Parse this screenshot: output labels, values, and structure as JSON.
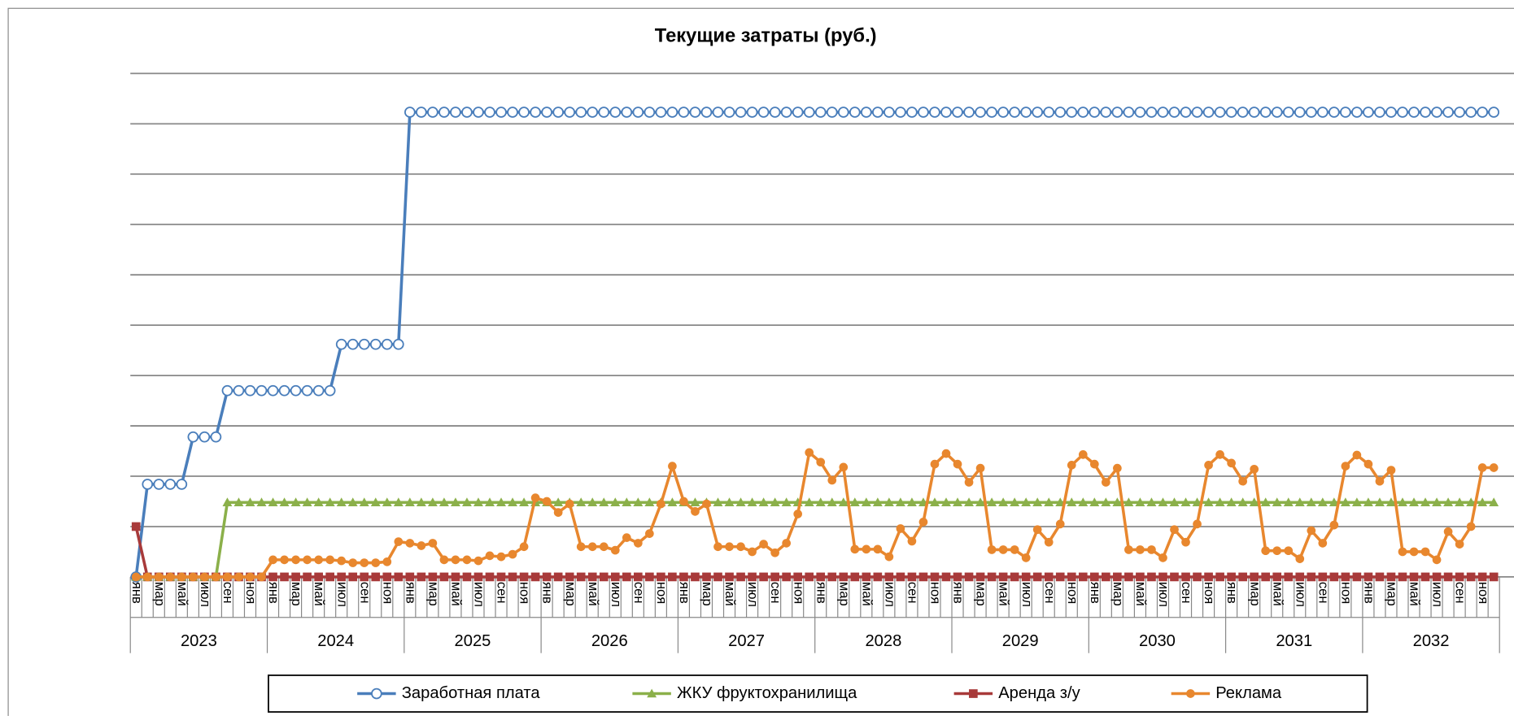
{
  "chart_data": {
    "type": "line",
    "title": "Текущие затраты (руб.)",
    "categories": [
      "янв",
      null,
      "мар",
      null,
      "май",
      null,
      "июл",
      null,
      "сен",
      null,
      "ноя",
      null,
      "янв",
      null,
      "мар",
      null,
      "май",
      null,
      "июл",
      null,
      "сен",
      null,
      "ноя",
      null,
      "янв",
      null,
      "мар",
      null,
      "май",
      null,
      "июл",
      null,
      "сен",
      null,
      "ноя",
      null,
      "янв",
      null,
      "мар",
      null,
      "май",
      null,
      "июл",
      null,
      "сен",
      null,
      "ноя",
      null,
      "янв",
      null,
      "мар",
      null,
      "май",
      null,
      "июл",
      null,
      "сен",
      null,
      "ноя",
      null,
      "янв",
      null,
      "мар",
      null,
      "май",
      null,
      "июл",
      null,
      "сен",
      null,
      "ноя",
      null,
      "янв",
      null,
      "мар",
      null,
      "май",
      null,
      "июл",
      null,
      "сен",
      null,
      "ноя",
      null,
      "янв",
      null,
      "мар",
      null,
      "май",
      null,
      "июл",
      null,
      "сен",
      null,
      "ноя",
      null,
      "янв",
      null,
      "мар",
      null,
      "май",
      null,
      "июл",
      null,
      "сен",
      null,
      "ноя",
      null,
      "янв",
      null,
      "мар",
      null,
      "май",
      null,
      "июл",
      null,
      "сен",
      null,
      "ноя",
      null
    ],
    "years": [
      "2023",
      "2024",
      "2025",
      "2026",
      "2027",
      "2028",
      "2029",
      "2030",
      "2031",
      "2032"
    ],
    "ylim": [
      0,
      10
    ],
    "yticks": [
      0,
      1,
      2,
      3,
      4,
      5,
      6,
      7,
      8,
      9,
      10
    ],
    "grid": true,
    "series": [
      {
        "name": "Заработная плата",
        "color": "#4a7ebb",
        "marker": "circle-open",
        "values": [
          0,
          1.84,
          1.84,
          1.84,
          1.84,
          2.78,
          2.78,
          2.78,
          3.7,
          3.7,
          3.7,
          3.7,
          3.7,
          3.7,
          3.7,
          3.7,
          3.7,
          3.7,
          4.62,
          4.62,
          4.62,
          4.62,
          4.62,
          4.62,
          9.23,
          9.23,
          9.23,
          9.23,
          9.23,
          9.23,
          9.23,
          9.23,
          9.23,
          9.23,
          9.23,
          9.23,
          9.23,
          9.23,
          9.23,
          9.23,
          9.23,
          9.23,
          9.23,
          9.23,
          9.23,
          9.23,
          9.23,
          9.23,
          9.23,
          9.23,
          9.23,
          9.23,
          9.23,
          9.23,
          9.23,
          9.23,
          9.23,
          9.23,
          9.23,
          9.23,
          9.23,
          9.23,
          9.23,
          9.23,
          9.23,
          9.23,
          9.23,
          9.23,
          9.23,
          9.23,
          9.23,
          9.23,
          9.23,
          9.23,
          9.23,
          9.23,
          9.23,
          9.23,
          9.23,
          9.23,
          9.23,
          9.23,
          9.23,
          9.23,
          9.23,
          9.23,
          9.23,
          9.23,
          9.23,
          9.23,
          9.23,
          9.23,
          9.23,
          9.23,
          9.23,
          9.23,
          9.23,
          9.23,
          9.23,
          9.23,
          9.23,
          9.23,
          9.23,
          9.23,
          9.23,
          9.23,
          9.23,
          9.23,
          9.23,
          9.23,
          9.23,
          9.23,
          9.23,
          9.23,
          9.23,
          9.23,
          9.23,
          9.23,
          9.23,
          9.23
        ]
      },
      {
        "name": "ЖКУ фруктохранилища",
        "color": "#8bb04a",
        "marker": "triangle",
        "values": [
          0,
          0,
          0,
          0,
          0,
          0,
          0,
          0,
          1.48,
          1.48,
          1.48,
          1.48,
          1.48,
          1.48,
          1.48,
          1.48,
          1.48,
          1.48,
          1.48,
          1.48,
          1.48,
          1.48,
          1.48,
          1.48,
          1.48,
          1.48,
          1.48,
          1.48,
          1.48,
          1.48,
          1.48,
          1.48,
          1.48,
          1.48,
          1.48,
          1.48,
          1.48,
          1.48,
          1.48,
          1.48,
          1.48,
          1.48,
          1.48,
          1.48,
          1.48,
          1.48,
          1.48,
          1.48,
          1.48,
          1.48,
          1.48,
          1.48,
          1.48,
          1.48,
          1.48,
          1.48,
          1.48,
          1.48,
          1.48,
          1.48,
          1.48,
          1.48,
          1.48,
          1.48,
          1.48,
          1.48,
          1.48,
          1.48,
          1.48,
          1.48,
          1.48,
          1.48,
          1.48,
          1.48,
          1.48,
          1.48,
          1.48,
          1.48,
          1.48,
          1.48,
          1.48,
          1.48,
          1.48,
          1.48,
          1.48,
          1.48,
          1.48,
          1.48,
          1.48,
          1.48,
          1.48,
          1.48,
          1.48,
          1.48,
          1.48,
          1.48,
          1.48,
          1.48,
          1.48,
          1.48,
          1.48,
          1.48,
          1.48,
          1.48,
          1.48,
          1.48,
          1.48,
          1.48,
          1.48,
          1.48,
          1.48,
          1.48,
          1.48,
          1.48,
          1.48,
          1.48,
          1.48,
          1.48,
          1.48,
          1.48
        ]
      },
      {
        "name": "Аренда з/у",
        "color": "#a83a3a",
        "marker": "square",
        "values": [
          1,
          0,
          0,
          0,
          0,
          0,
          0,
          0,
          0,
          0,
          0,
          0,
          0,
          0,
          0,
          0,
          0,
          0,
          0,
          0,
          0,
          0,
          0,
          0,
          0,
          0,
          0,
          0,
          0,
          0,
          0,
          0,
          0,
          0,
          0,
          0,
          0,
          0,
          0,
          0,
          0,
          0,
          0,
          0,
          0,
          0,
          0,
          0,
          0,
          0,
          0,
          0,
          0,
          0,
          0,
          0,
          0,
          0,
          0,
          0,
          0,
          0,
          0,
          0,
          0,
          0,
          0,
          0,
          0,
          0,
          0,
          0,
          0,
          0,
          0,
          0,
          0,
          0,
          0,
          0,
          0,
          0,
          0,
          0,
          0,
          0,
          0,
          0,
          0,
          0,
          0,
          0,
          0,
          0,
          0,
          0,
          0,
          0,
          0,
          0,
          0,
          0,
          0,
          0,
          0,
          0,
          0,
          0,
          0,
          0,
          0,
          0,
          0,
          0,
          0,
          0,
          0,
          0,
          0,
          0
        ]
      },
      {
        "name": "Реклама",
        "color": "#e8872e",
        "marker": "circle",
        "values": [
          0,
          0,
          0,
          0,
          0,
          0,
          0,
          0,
          0,
          0,
          0,
          0,
          0.34,
          0.34,
          0.34,
          0.34,
          0.34,
          0.34,
          0.32,
          0.28,
          0.28,
          0.28,
          0.3,
          0.7,
          0.67,
          0.62,
          0.67,
          0.34,
          0.34,
          0.34,
          0.32,
          0.42,
          0.4,
          0.45,
          0.6,
          1.57,
          1.5,
          1.28,
          1.45,
          0.6,
          0.6,
          0.6,
          0.53,
          0.78,
          0.67,
          0.86,
          1.45,
          2.2,
          1.5,
          1.3,
          1.45,
          0.6,
          0.6,
          0.6,
          0.5,
          0.65,
          0.48,
          0.67,
          1.25,
          2.47,
          2.28,
          1.92,
          2.18,
          0.55,
          0.55,
          0.55,
          0.4,
          0.96,
          0.71,
          1.09,
          2.24,
          2.45,
          2.24,
          1.88,
          2.16,
          0.54,
          0.54,
          0.54,
          0.38,
          0.94,
          0.69,
          1.05,
          2.22,
          2.43,
          2.24,
          1.88,
          2.16,
          0.54,
          0.54,
          0.54,
          0.38,
          0.94,
          0.69,
          1.05,
          2.22,
          2.43,
          2.26,
          1.9,
          2.14,
          0.52,
          0.52,
          0.52,
          0.36,
          0.92,
          0.67,
          1.03,
          2.2,
          2.42,
          2.24,
          1.9,
          2.12,
          0.5,
          0.5,
          0.5,
          0.34,
          0.9,
          0.65,
          1.0,
          2.17,
          2.17
        ]
      }
    ]
  }
}
